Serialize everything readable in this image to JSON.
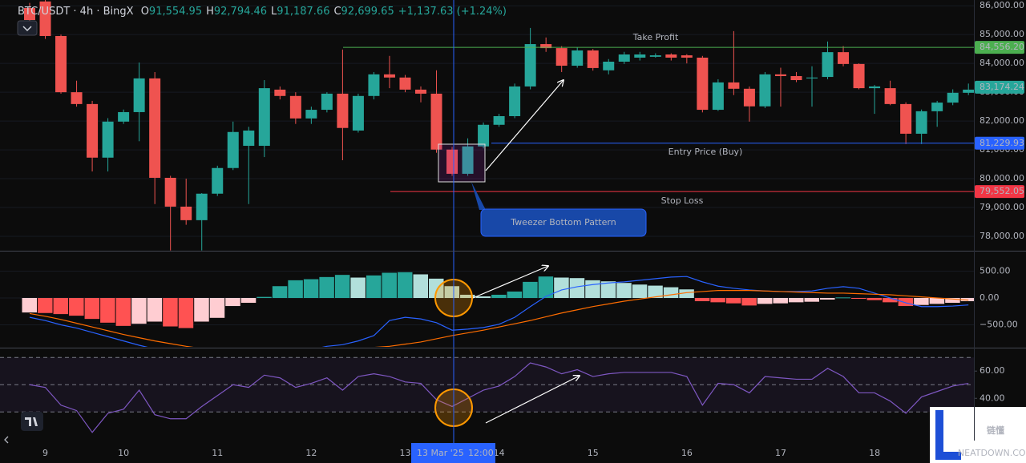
{
  "chart_data": [
    {
      "type": "candlestick",
      "header": {
        "symbol": "BTC/USDT · 4h · BingX",
        "ohlc": [
          {
            "label": "O",
            "value": "91,554.95"
          },
          {
            "label": "H",
            "value": "92,794.46"
          },
          {
            "label": "L",
            "value": "91,187.66"
          },
          {
            "label": "C",
            "value": "92,699.65"
          }
        ],
        "change": "+1,137.63 (+1.24%)"
      },
      "categories": [
        null,
        "9",
        null,
        null,
        null,
        null,
        "10",
        null,
        null,
        null,
        null,
        null,
        "11",
        null,
        null,
        null,
        null,
        null,
        "12",
        null,
        null,
        null,
        null,
        null,
        "13",
        null,
        null,
        null,
        null,
        null,
        "14",
        null,
        null,
        null,
        null,
        null,
        "15",
        null,
        null,
        null,
        null,
        null,
        "16",
        null,
        null,
        null,
        null,
        null,
        "17",
        null,
        null,
        null,
        null,
        null,
        "18",
        null,
        null,
        null,
        null,
        null,
        null
      ],
      "open": [
        85922,
        86150,
        84950,
        83000,
        82590,
        80730,
        81980,
        82310,
        83480,
        80030,
        79030,
        78560,
        79480,
        80370,
        81140,
        81140,
        83090,
        82870,
        82090,
        82390,
        82950,
        81670,
        82870,
        83620,
        83510,
        83090,
        82950,
        81010,
        80170,
        81120,
        81870,
        82170,
        83200,
        84670,
        84530,
        83920,
        84450,
        83760,
        84060,
        84200,
        84230,
        84310,
        84280,
        84200,
        82390,
        83340,
        83120,
        82510,
        83620,
        83560,
        83480,
        83530,
        84390,
        83980,
        83140,
        83140,
        82590,
        81560,
        82340,
        82640,
        82980
      ],
      "high": [
        86100,
        86200,
        85000,
        83400,
        82700,
        82100,
        82400,
        84030,
        83700,
        80100,
        80000,
        79500,
        80450,
        81980,
        81800,
        83420,
        83200,
        83000,
        82500,
        83000,
        84480,
        82950,
        83700,
        84260,
        83600,
        83200,
        83760,
        81100,
        81400,
        81950,
        82250,
        83300,
        85230,
        84900,
        84600,
        84550,
        84500,
        84150,
        84400,
        84400,
        84350,
        84350,
        84320,
        84260,
        83450,
        85120,
        83200,
        83700,
        83850,
        83700,
        83900,
        84760,
        84600,
        84000,
        83250,
        83400,
        82650,
        82400,
        82700,
        83100,
        83300
      ],
      "low": [
        85400,
        84850,
        82950,
        82500,
        80250,
        80250,
        81900,
        81300,
        79120,
        77510,
        78400,
        77510,
        79400,
        80300,
        79120,
        80750,
        82750,
        81900,
        81900,
        82300,
        80640,
        81600,
        82750,
        83140,
        83000,
        82650,
        80900,
        80100,
        80100,
        81050,
        81800,
        82100,
        83100,
        84400,
        83700,
        83850,
        83750,
        83620,
        83980,
        84100,
        84200,
        84100,
        84000,
        82300,
        82350,
        82900,
        81980,
        82450,
        82500,
        83350,
        82500,
        83450,
        83900,
        83100,
        82250,
        82550,
        81200,
        81200,
        81800,
        82550,
        82900
      ],
      "close": [
        85505,
        84950,
        83000,
        82590,
        80730,
        81980,
        82310,
        83480,
        80030,
        79030,
        78560,
        79480,
        80370,
        81620,
        81670,
        83140,
        82870,
        82090,
        82390,
        82950,
        81760,
        82870,
        83620,
        83510,
        83090,
        82950,
        81010,
        80170,
        81120,
        81870,
        82170,
        83200,
        84670,
        84530,
        83920,
        84450,
        83840,
        84060,
        84310,
        84310,
        84280,
        84200,
        84200,
        82390,
        83340,
        83120,
        82510,
        83620,
        83560,
        83420,
        83510,
        84390,
        83980,
        83140,
        83200,
        82590,
        81560,
        82340,
        82640,
        82980,
        83090
      ],
      "up_color": "#26a69a",
      "down_color": "#ef5350",
      "ylim": [
        77500,
        86200
      ],
      "yticks": [
        {
          "value": 78000,
          "label": "78,000.00"
        },
        {
          "value": 79000,
          "label": "79,000.00"
        },
        {
          "value": 80000,
          "label": "80,000.00"
        },
        {
          "value": 81000,
          "label": "81,000.00"
        },
        {
          "value": 82000,
          "label": "82,000.00"
        },
        {
          "value": 83000,
          "label": "83,000.00"
        },
        {
          "value": 84000,
          "label": "84,000.00"
        },
        {
          "value": 85000,
          "label": "85,000.00"
        },
        {
          "value": 86000,
          "label": "86,000.00"
        }
      ],
      "levels": [
        {
          "name": "Take Profit",
          "value": 84556.2,
          "label": "84,556.20",
          "color": "#4caf50"
        },
        {
          "name": "Entry Price (Buy)",
          "value": 81229.93,
          "label": "81,229.93",
          "color": "#2962ff"
        },
        {
          "name": "Stop Loss",
          "value": 79552.05,
          "label": "79,552.05",
          "color": "#f23645"
        }
      ],
      "last_price": {
        "value": 83174.24,
        "label": "83,174.24",
        "color": "#26a69a"
      },
      "annotation": "Tweezer Bottom Pattern",
      "crosshair": {
        "date": "13 Mar '25",
        "time": "12:00"
      },
      "watermark": {
        "text": "链懂",
        "sub": "NEATDOWN.COM"
      }
    },
    {
      "type": "macd",
      "histogram": [
        -270,
        -280,
        -300,
        -330,
        -390,
        -460,
        -520,
        -480,
        -440,
        -530,
        -560,
        -440,
        -370,
        -150,
        -90,
        20,
        220,
        330,
        350,
        390,
        430,
        380,
        420,
        470,
        480,
        440,
        360,
        220,
        60,
        30,
        60,
        120,
        300,
        400,
        380,
        370,
        330,
        310,
        280,
        250,
        230,
        200,
        160,
        -60,
        -80,
        -100,
        -140,
        -110,
        -100,
        -80,
        -70,
        -30,
        10,
        -10,
        -40,
        -80,
        -150,
        -130,
        -110,
        -90,
        -60
      ],
      "histogram_colors": [
        "#26a69a",
        "#b2dfdb",
        "#ffcdd2",
        "#ff5252"
      ],
      "series": [
        {
          "color": "#2962ff",
          "values": [
            -360,
            -420,
            -500,
            -560,
            -640,
            -720,
            -800,
            -880,
            -950,
            -1020,
            -1080,
            -1100,
            -1120,
            -1100,
            -1080,
            -1050,
            -1020,
            -1000,
            -960,
            -900,
            -870,
            -800,
            -700,
            -420,
            -360,
            -390,
            -460,
            -600,
            -580,
            -550,
            -490,
            -360,
            -160,
            30,
            150,
            210,
            250,
            280,
            300,
            330,
            360,
            390,
            400,
            300,
            220,
            180,
            150,
            130,
            120,
            120,
            130,
            180,
            210,
            180,
            90,
            0,
            -90,
            -160,
            -160,
            -150,
            -130
          ]
        },
        {
          "color": "#ff6d00",
          "values": [
            -290,
            -340,
            -400,
            -470,
            -540,
            -610,
            -680,
            -740,
            -800,
            -850,
            -900,
            -940,
            -970,
            -990,
            -1000,
            -1010,
            -1010,
            -1000,
            -990,
            -970,
            -950,
            -930,
            -920,
            -900,
            -860,
            -820,
            -760,
            -700,
            -650,
            -600,
            -540,
            -480,
            -420,
            -350,
            -280,
            -220,
            -160,
            -110,
            -60,
            -20,
            20,
            60,
            100,
            120,
            140,
            140,
            140,
            130,
            120,
            110,
            100,
            90,
            90,
            80,
            70,
            60,
            40,
            20,
            0,
            -20,
            -40
          ]
        }
      ],
      "ylim": [
        -910,
        865
      ],
      "yticks": [
        {
          "value": 500,
          "label": "500.00"
        },
        {
          "value": 0,
          "label": "0.00"
        },
        {
          "value": -500,
          "label": "−500.00"
        }
      ]
    },
    {
      "type": "line",
      "values": [
        50,
        48,
        35,
        31,
        15,
        29,
        32,
        46,
        28,
        25,
        25,
        34,
        42,
        50,
        48,
        57,
        55,
        48,
        51,
        55,
        46,
        56,
        58,
        56,
        52,
        51,
        39,
        34,
        40,
        46,
        49,
        56,
        66,
        63,
        58,
        61,
        56,
        58,
        59,
        59,
        59,
        59,
        56,
        35,
        51,
        50,
        44,
        56,
        55,
        54,
        54,
        62,
        56,
        44,
        44,
        38,
        29,
        41,
        45,
        49,
        51
      ],
      "color": "#7e57c2",
      "ylim": [
        9,
        76
      ],
      "yticks": [
        {
          "value": 60,
          "label": "60.00"
        },
        {
          "value": 40,
          "label": "40.00"
        }
      ],
      "levels": [
        70,
        50,
        30
      ]
    }
  ]
}
